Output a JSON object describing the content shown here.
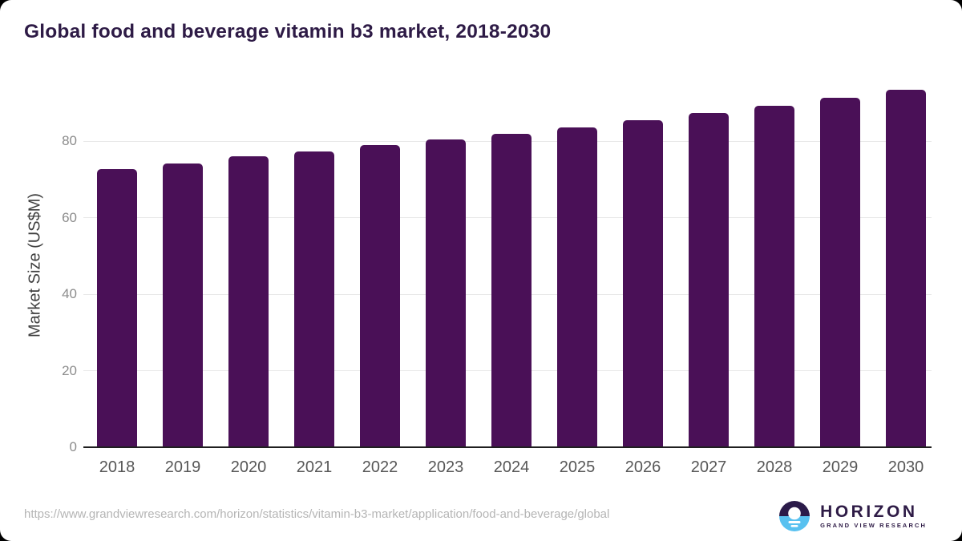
{
  "chart_data": {
    "type": "bar",
    "title": "Global food and beverage vitamin b3 market, 2018-2030",
    "xlabel": "",
    "ylabel": "Market Size (US$M)",
    "categories": [
      "2018",
      "2019",
      "2020",
      "2021",
      "2022",
      "2023",
      "2024",
      "2025",
      "2026",
      "2027",
      "2028",
      "2029",
      "2030"
    ],
    "values": [
      72.8,
      74.2,
      76.1,
      77.4,
      79.0,
      80.4,
      81.9,
      83.6,
      85.5,
      87.4,
      89.3,
      91.5,
      93.5
    ],
    "yticks": [
      0,
      20,
      40,
      60,
      80
    ],
    "ylim": [
      0,
      96
    ],
    "grid": true,
    "legend_position": "none",
    "bar_color": "#4a1057"
  },
  "colors": {
    "bar": "#4a1057",
    "title": "#2e1b46",
    "axis_label": "#3f3f3f",
    "tick": "#8c8c8c",
    "xtick": "#575757",
    "gridline": "#e8e8e8",
    "baseline": "#1f1f1f",
    "source": "#b5b5b5",
    "logo_navy": "#2b1b49",
    "logo_blue": "#58c1f0"
  },
  "footer": {
    "source_url": "https://www.grandviewresearch.com/horizon/statistics/vitamin-b3-market/application/food-and-beverage/global",
    "logo_brand": "HORIZON",
    "logo_subtitle": "GRAND VIEW RESEARCH"
  }
}
